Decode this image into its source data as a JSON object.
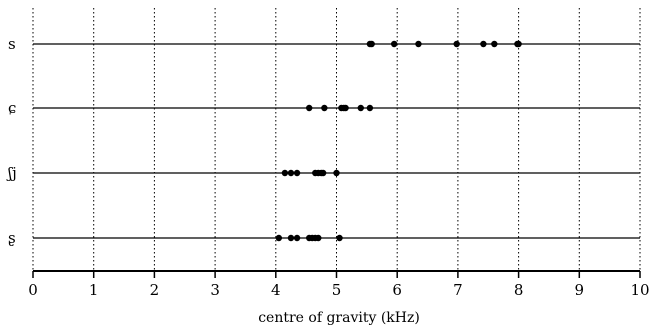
{
  "chart_data": {
    "type": "scatter",
    "title": "",
    "xlabel": "centre of gravity (kHz)",
    "ylabel": "",
    "xlim": [
      0,
      10
    ],
    "x_ticks": [
      "0",
      "1",
      "2",
      "3",
      "4",
      "5",
      "6",
      "7",
      "8",
      "9",
      "10"
    ],
    "grid": "vertical dotted lines at integer kHz",
    "categories": [
      "s",
      "ɕ",
      "ʃj",
      "ʂ"
    ],
    "series": [
      {
        "category": "s",
        "x": [
          5.55,
          5.58,
          5.95,
          6.35,
          6.98,
          7.42,
          7.6,
          7.98,
          8.0
        ]
      },
      {
        "category": "ɕ",
        "x": [
          4.55,
          4.8,
          5.08,
          5.12,
          5.15,
          5.4,
          5.55
        ]
      },
      {
        "category": "ʃj",
        "x": [
          4.15,
          4.25,
          4.35,
          4.65,
          4.7,
          4.75,
          4.78,
          5.0
        ]
      },
      {
        "category": "ʂ",
        "x": [
          4.05,
          4.25,
          4.35,
          4.55,
          4.6,
          4.65,
          4.7,
          5.05
        ]
      }
    ],
    "colors": {
      "points": "#000000",
      "lines": "#000000",
      "background": "#ffffff"
    }
  }
}
